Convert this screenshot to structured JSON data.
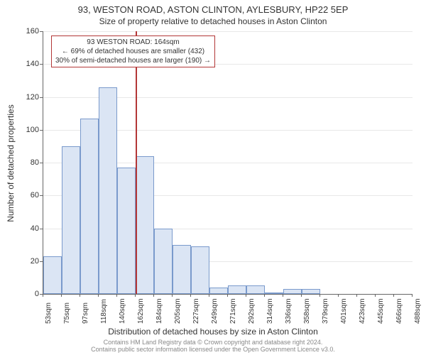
{
  "title_main": "93, WESTON ROAD, ASTON CLINTON, AYLESBURY, HP22 5EP",
  "title_sub": "Size of property relative to detached houses in Aston Clinton",
  "y_axis_label": "Number of detached properties",
  "x_axis_label": "Distribution of detached houses by size in Aston Clinton",
  "footer_line1": "Contains HM Land Registry data © Crown copyright and database right 2024.",
  "footer_line2": "Contains public sector information licensed under the Open Government Licence v3.0.",
  "chart": {
    "type": "histogram",
    "background_color": "#ffffff",
    "grid_color": "#e8e8e8",
    "axis_color": "#666666",
    "bar_fill": "#dbe5f4",
    "bar_border": "#7a9acc",
    "marker_color": "#b33636",
    "ylim": [
      0,
      160
    ],
    "yticks": [
      0,
      20,
      40,
      60,
      80,
      100,
      120,
      140,
      160
    ],
    "x_tick_labels": [
      "53sqm",
      "75sqm",
      "97sqm",
      "118sqm",
      "140sqm",
      "162sqm",
      "184sqm",
      "205sqm",
      "227sqm",
      "249sqm",
      "271sqm",
      "292sqm",
      "314sqm",
      "336sqm",
      "358sqm",
      "379sqm",
      "401sqm",
      "423sqm",
      "445sqm",
      "466sqm",
      "488sqm"
    ],
    "values": [
      23,
      90,
      107,
      126,
      77,
      84,
      40,
      30,
      29,
      4,
      5,
      5,
      1,
      3,
      3,
      0,
      0,
      0,
      0,
      0
    ],
    "marker_bin_index": 5,
    "label_fontsize": 12,
    "tick_fontsize": 11,
    "title_fontsize": 13
  },
  "annotation": {
    "line1": "93 WESTON ROAD: 164sqm",
    "line2": "← 69% of detached houses are smaller (432)",
    "line3": "30% of semi-detached houses are larger (190) →"
  }
}
